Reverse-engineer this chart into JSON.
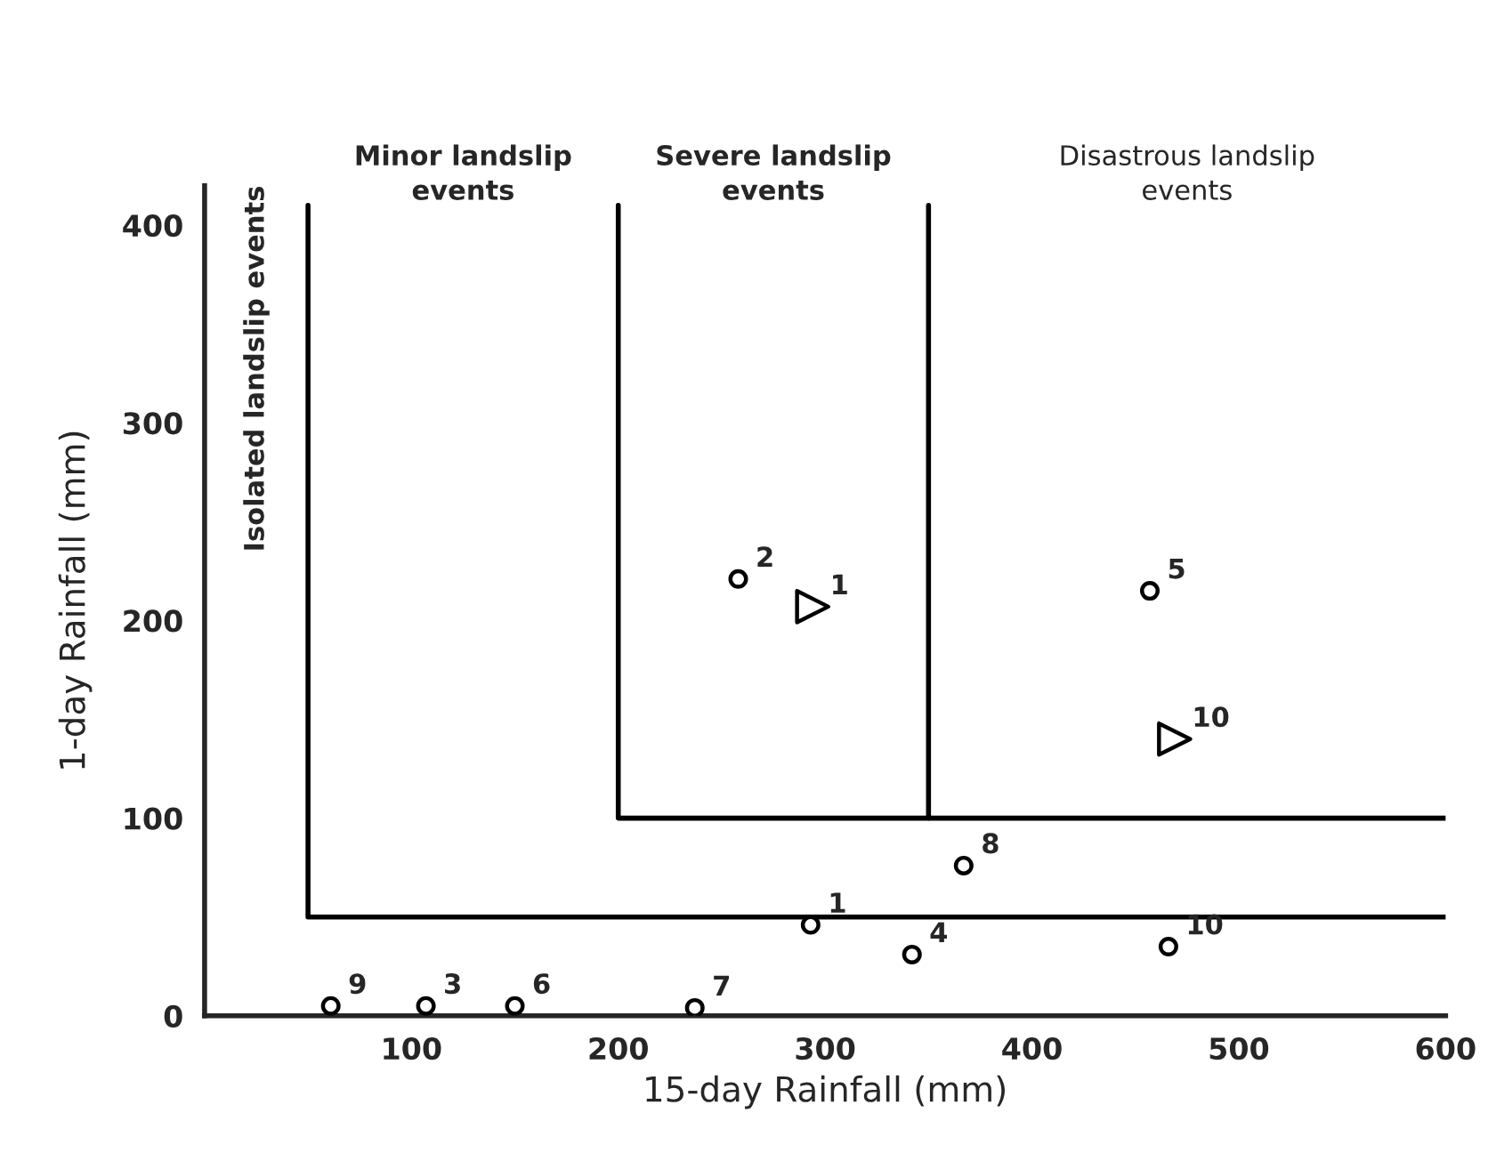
{
  "chart_data": {
    "type": "scatter",
    "xlabel": "15-day Rainfall (mm)",
    "ylabel": "1-day Rainfall (mm)",
    "xlim": [
      0,
      600
    ],
    "ylim": [
      0,
      420
    ],
    "xticks": [
      100,
      200,
      300,
      400,
      500,
      600
    ],
    "yticks": [
      0,
      100,
      200,
      300,
      400
    ],
    "grid": false,
    "legend": false,
    "series": [
      {
        "marker": "circle",
        "color": "#000000",
        "x": [
          61,
          107,
          150,
          237,
          293,
          342,
          367,
          466,
          258,
          457
        ],
        "values": [
          5,
          5,
          5,
          4,
          46,
          31,
          76,
          35,
          221,
          215
        ]
      },
      {
        "marker": "triangle",
        "color": "#000000",
        "x": [
          294,
          469
        ],
        "values": [
          207,
          140
        ]
      },
      {
        "type": "line",
        "color": "#000000",
        "x": [
          50,
          50,
          600
        ],
        "values": [
          410,
          50,
          50
        ]
      },
      {
        "type": "line",
        "color": "#000000",
        "x": [
          200,
          200,
          600
        ],
        "values": [
          410,
          100,
          100
        ]
      },
      {
        "type": "line",
        "color": "#000000",
        "x": [
          350,
          350
        ],
        "values": [
          410,
          100
        ]
      }
    ],
    "annotations": [
      {
        "text": "9",
        "x": 61,
        "y": 5
      },
      {
        "text": "3",
        "x": 107,
        "y": 5
      },
      {
        "text": "6",
        "x": 150,
        "y": 5
      },
      {
        "text": "7",
        "x": 237,
        "y": 4
      },
      {
        "text": "1",
        "x": 293,
        "y": 46
      },
      {
        "text": "4",
        "x": 342,
        "y": 31
      },
      {
        "text": "8",
        "x": 367,
        "y": 76
      },
      {
        "text": "10",
        "x": 466,
        "y": 35
      },
      {
        "text": "2",
        "x": 258,
        "y": 221
      },
      {
        "text": "5",
        "x": 457,
        "y": 215
      },
      {
        "text": "1",
        "x": 294,
        "y": 207
      },
      {
        "text": "10",
        "x": 469,
        "y": 140
      },
      "Minor landslip\nevents",
      "Severe landslip\nevents",
      "Disastrous landslip\nevents",
      "Isolated landslip events"
    ]
  }
}
